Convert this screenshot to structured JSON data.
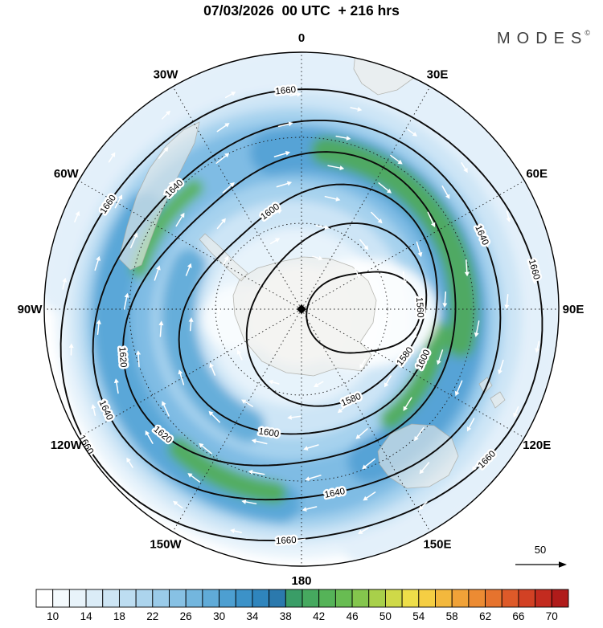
{
  "header": {
    "title": "07/03/2026  00 UTC  + 216 hrs",
    "logo_text": "MODES",
    "logo_sup": "©"
  },
  "chart_data": {
    "type": "contour-map",
    "projection": "polar-stereographic",
    "title": "07/03/2026  00 UTC  + 216 hrs",
    "meridian_labels": [
      {
        "text": "0",
        "angle_deg": -90
      },
      {
        "text": "30E",
        "angle_deg": -60
      },
      {
        "text": "60E",
        "angle_deg": -30
      },
      {
        "text": "90E",
        "angle_deg": 0
      },
      {
        "text": "120E",
        "angle_deg": 30
      },
      {
        "text": "150E",
        "angle_deg": 60
      },
      {
        "text": "180",
        "angle_deg": 90
      },
      {
        "text": "150W",
        "angle_deg": 120
      },
      {
        "text": "120W",
        "angle_deg": 150
      },
      {
        "text": "90W",
        "angle_deg": 180
      },
      {
        "text": "60W",
        "angle_deg": -150
      },
      {
        "text": "30W",
        "angle_deg": -120
      }
    ],
    "contour_levels": [
      1560,
      1580,
      1600,
      1620,
      1640,
      1660
    ],
    "contour_interval": 20,
    "contour_label_placements": [
      {
        "value": 1560,
        "angles_deg": [
          -5
        ]
      },
      {
        "value": 1580,
        "angles_deg": [
          78,
          30
        ]
      },
      {
        "value": 1600,
        "angles_deg": [
          -113,
          21,
          112
        ]
      },
      {
        "value": 1620,
        "angles_deg": [
          140,
          168
        ]
      },
      {
        "value": 1640,
        "angles_deg": [
          -135,
          -25,
          155,
          80
        ]
      },
      {
        "value": 1660,
        "angles_deg": [
          -95,
          -150,
          150,
          95,
          -12,
          38
        ]
      }
    ],
    "colorbar": {
      "ticks": [
        10,
        14,
        18,
        22,
        26,
        30,
        34,
        38,
        42,
        46,
        50,
        54,
        58,
        62,
        66,
        70
      ],
      "colors": [
        "#ffffff",
        "#f4fafd",
        "#e8f3fa",
        "#dbecf7",
        "#cde5f4",
        "#bdddf1",
        "#acd4ed",
        "#9acbe9",
        "#87c1e4",
        "#73b6de",
        "#60abd8",
        "#4d9fd1",
        "#3c92c8",
        "#2f85bd",
        "#2b79ad",
        "#3a9d67",
        "#46a95f",
        "#55b358",
        "#68bc52",
        "#84c64d",
        "#a8d04a",
        "#cfd948",
        "#eede49",
        "#f5ce43",
        "#f3b83d",
        "#f0a238",
        "#ec8b33",
        "#e6732e",
        "#de5a29",
        "#d24124",
        "#c32b1f",
        "#b01b1a"
      ]
    },
    "wind_reference_label": "50"
  }
}
